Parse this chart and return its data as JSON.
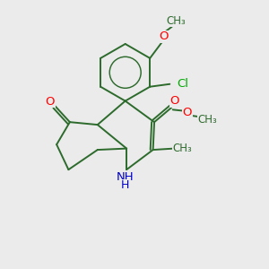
{
  "background_color": "#ebebeb",
  "bond_color": "#2d6b2d",
  "atom_colors": {
    "O": "#ff0000",
    "N": "#0000cc",
    "Cl": "#00aa00",
    "C": "#2d6b2d"
  },
  "figsize": [
    3.0,
    3.0
  ],
  "dpi": 100,
  "xlim": [
    0,
    10
  ],
  "ylim": [
    0,
    10
  ],
  "lw": 1.4,
  "fontsize": 9.5
}
